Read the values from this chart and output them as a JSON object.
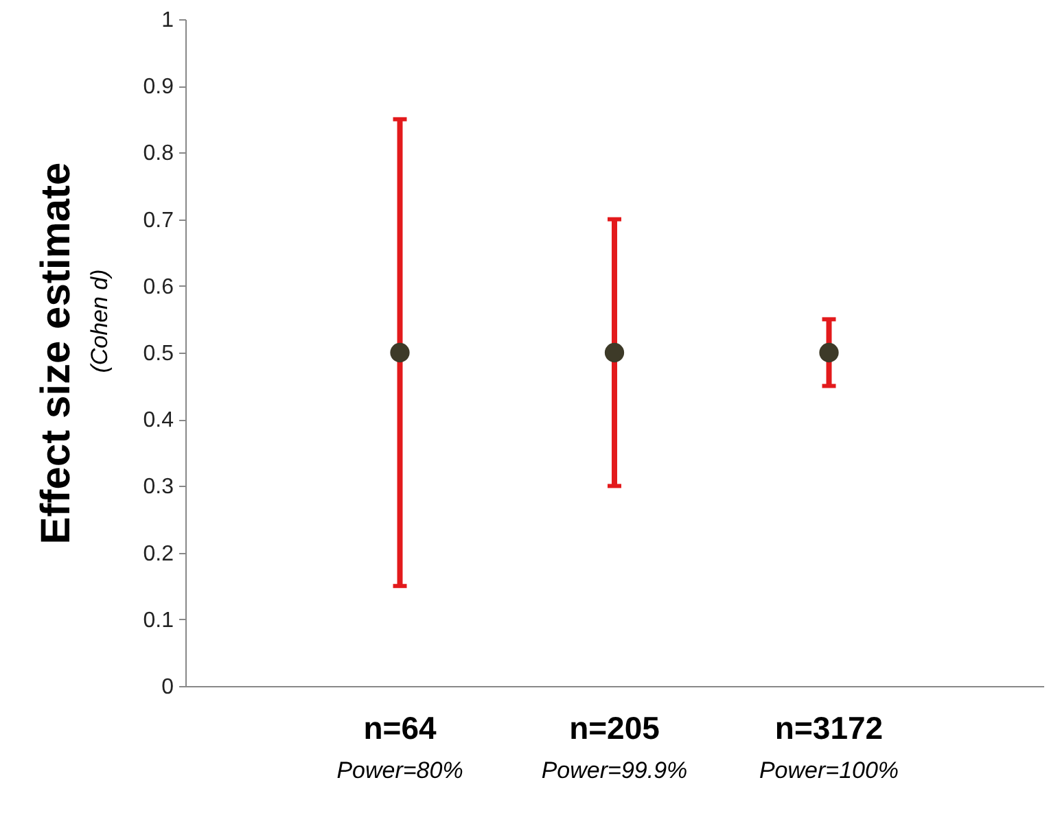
{
  "chart_data": {
    "type": "scatter",
    "ylabel": "Effect size estimate",
    "annotations": [
      "(Cohen d)",
      "Power=80%",
      "Power=99.9%",
      "Power=100%"
    ],
    "categories": [
      "n=64",
      "n=205",
      "n=3172"
    ],
    "series": [
      {
        "color": "#3d3a28",
        "values": [
          0.5,
          0.5,
          0.5
        ],
        "errors": [
          0.35,
          0.2,
          0.05
        ]
      }
    ],
    "ylim": [
      0,
      1
    ],
    "yticks": [
      0,
      0.1,
      0.2,
      0.3,
      0.4,
      0.5,
      0.6,
      0.7,
      0.8,
      0.9,
      1
    ],
    "grid": false,
    "marker": "circle"
  }
}
